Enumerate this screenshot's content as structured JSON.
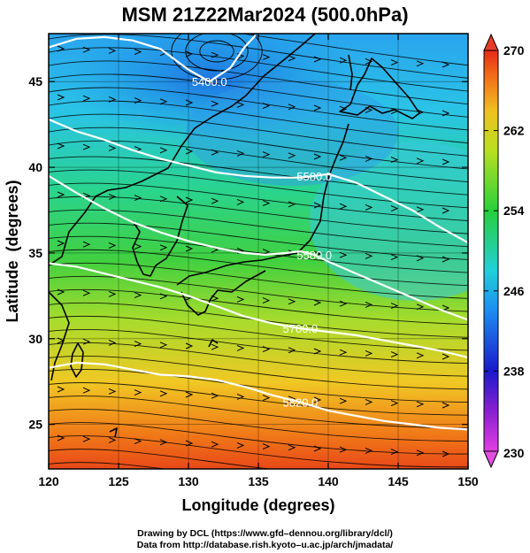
{
  "title": "MSM 21Z22Mar2024 (500.0hPa)",
  "x_axis": {
    "label": "Longitude (degrees)",
    "ticks": [
      120,
      125,
      130,
      135,
      140,
      145,
      150
    ]
  },
  "y_axis": {
    "label": "Latitude  (degrees)",
    "ticks": [
      25,
      30,
      35,
      40,
      45
    ]
  },
  "colorbar": {
    "ticks": [
      230,
      238,
      246,
      254,
      262,
      270
    ]
  },
  "contours": [
    {
      "label": "5400.0",
      "points": [
        [
          120,
          47.0
        ],
        [
          122,
          47.5
        ],
        [
          124,
          47.6
        ],
        [
          126,
          47.4
        ],
        [
          128,
          46.9
        ],
        [
          130,
          45.7
        ],
        [
          131.5,
          45.0
        ],
        [
          133,
          45.8
        ],
        [
          134,
          47.0
        ],
        [
          134.8,
          47.7
        ]
      ]
    },
    {
      "label": "5580.0",
      "points": [
        [
          120,
          42.8
        ],
        [
          122,
          42.1
        ],
        [
          124,
          41.6
        ],
        [
          126,
          41.0
        ],
        [
          128,
          40.5
        ],
        [
          130,
          40.1
        ],
        [
          132,
          39.7
        ],
        [
          134,
          39.5
        ],
        [
          136,
          39.4
        ],
        [
          138,
          39.4
        ],
        [
          139,
          39.5
        ],
        [
          140,
          39.6
        ],
        [
          142,
          39.1
        ],
        [
          144,
          38.3
        ],
        [
          146,
          37.5
        ],
        [
          148,
          36.5
        ],
        [
          150,
          35.6
        ]
      ]
    },
    {
      "label": "5580.0",
      "points": [
        [
          120,
          39.5
        ],
        [
          122,
          38.5
        ],
        [
          124,
          37.6
        ],
        [
          126,
          36.8
        ],
        [
          128,
          36.2
        ],
        [
          130,
          35.7
        ],
        [
          132,
          35.3
        ],
        [
          134,
          35.0
        ],
        [
          135.5,
          34.9
        ],
        [
          137,
          35.0
        ],
        [
          138,
          35.1
        ],
        [
          139,
          34.9
        ],
        [
          140,
          34.5
        ],
        [
          142,
          33.8
        ],
        [
          144,
          33.1
        ],
        [
          146,
          32.4
        ],
        [
          148,
          31.7
        ],
        [
          150,
          31.1
        ]
      ]
    },
    {
      "label": "5700.0",
      "points": [
        [
          120,
          34.4
        ],
        [
          122,
          34.2
        ],
        [
          124,
          33.8
        ],
        [
          126,
          33.4
        ],
        [
          128,
          33.0
        ],
        [
          130,
          32.5
        ],
        [
          132,
          31.9
        ],
        [
          134,
          31.3
        ],
        [
          136,
          30.9
        ],
        [
          138,
          30.6
        ],
        [
          140,
          30.4
        ],
        [
          142,
          30.2
        ],
        [
          144,
          29.9
        ],
        [
          146,
          29.6
        ],
        [
          148,
          29.3
        ],
        [
          150,
          28.9
        ]
      ]
    },
    {
      "label": "5820.0",
      "points": [
        [
          120,
          28.3
        ],
        [
          122,
          28.6
        ],
        [
          124,
          28.5
        ],
        [
          126,
          28.2
        ],
        [
          128,
          27.9
        ],
        [
          130,
          27.8
        ],
        [
          132,
          27.6
        ],
        [
          134,
          27.2
        ],
        [
          136,
          26.7
        ],
        [
          138,
          26.3
        ],
        [
          140,
          25.8
        ],
        [
          142,
          25.5
        ],
        [
          144,
          25.2
        ],
        [
          146,
          25.0
        ],
        [
          148,
          24.8
        ],
        [
          150,
          24.7
        ]
      ]
    }
  ],
  "credit_line1": "Drawing by DCL (https://www.gfd–dennou.org/library/dcl/)",
  "credit_line2": "Data from http://database.rish.kyoto–u.ac.jp/arch/jmadata/"
}
